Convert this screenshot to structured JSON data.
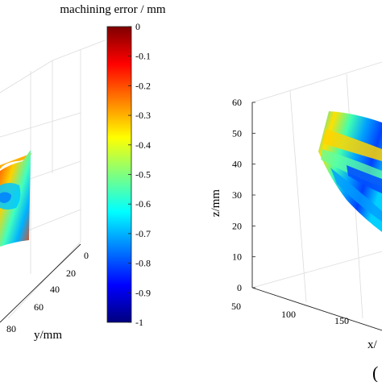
{
  "chart_data": [
    {
      "type": "surface3d",
      "panel": "left",
      "y_label": "y/mm",
      "y_ticks": [
        "0",
        "20",
        "40",
        "60",
        "80"
      ],
      "grid": true
    },
    {
      "type": "colorbar",
      "title": "machining error / mm",
      "range": [
        -1,
        0
      ],
      "ticks": [
        "0",
        "-0.1",
        "-0.2",
        "-0.3",
        "-0.4",
        "-0.5",
        "-0.6",
        "-0.7",
        "-0.8",
        "-0.9",
        "-1"
      ],
      "colormap": "jet",
      "colors": [
        "#00007f",
        "#0000ff",
        "#007fff",
        "#00ffff",
        "#7fff7f",
        "#ffff00",
        "#ff7f00",
        "#ff0000",
        "#7f0000"
      ]
    },
    {
      "type": "surface3d",
      "panel": "right",
      "z_label": "z/mm",
      "z_ticks": [
        "0",
        "10",
        "20",
        "30",
        "40",
        "50",
        "60"
      ],
      "z_range": [
        0,
        60
      ],
      "x_label": "x/",
      "x_ticks": [
        "50",
        "100",
        "150"
      ],
      "grid": true,
      "panel_tag": "("
    }
  ]
}
